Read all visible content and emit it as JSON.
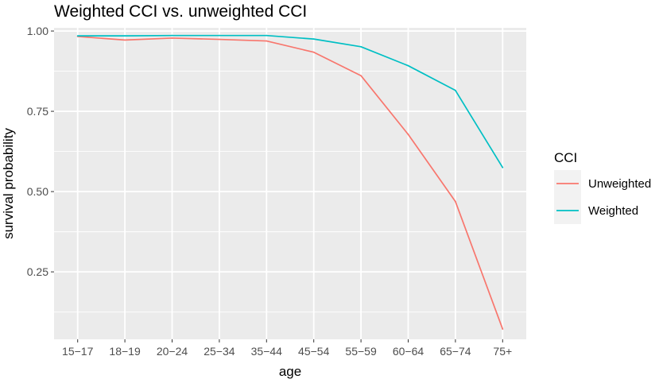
{
  "chart_data": {
    "type": "line",
    "title": "Weighted CCI vs. unweighted CCI",
    "xlabel": "age",
    "ylabel": "survival probability",
    "categories": [
      "15−17",
      "18−19",
      "20−24",
      "25−34",
      "35−44",
      "45−54",
      "55−59",
      "60−64",
      "65−74",
      "75+"
    ],
    "yticks": [
      "0.25",
      "0.50",
      "0.75",
      "1.00"
    ],
    "ytick_values": [
      0.25,
      0.5,
      0.75,
      1.0
    ],
    "ylim": [
      0.04,
      1.01
    ],
    "grid": true,
    "legend": {
      "title": "CCI",
      "position": "right"
    },
    "series": [
      {
        "name": "Unweighted",
        "color": "#F8766D",
        "values": [
          0.983,
          0.972,
          0.978,
          0.974,
          0.969,
          0.934,
          0.861,
          0.678,
          0.469,
          0.072
        ]
      },
      {
        "name": "Weighted",
        "color": "#00BFC4",
        "values": [
          0.985,
          0.985,
          0.986,
          0.986,
          0.986,
          0.975,
          0.951,
          0.892,
          0.815,
          0.575
        ]
      }
    ],
    "colors": {
      "panel": "#EBEBEB",
      "grid": "#FFFFFF",
      "legend_key": "#F2F2F2"
    }
  }
}
